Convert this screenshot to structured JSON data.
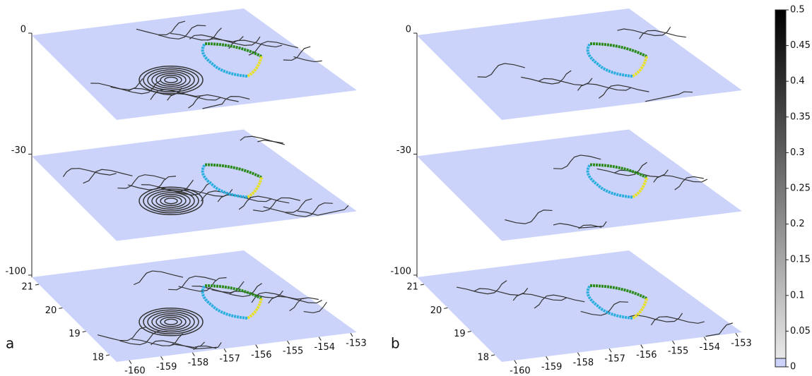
{
  "chart_data": [
    {
      "type": "slices",
      "panel_label": "a",
      "zticks": [
        0,
        -30,
        -100
      ],
      "yticks": [
        21,
        20,
        19,
        18
      ],
      "ylim": [
        17.7,
        21.3
      ],
      "xticks": [
        -160,
        -159,
        -158,
        -157,
        -156,
        -155,
        -154,
        -153
      ],
      "xlim": [
        -160.4,
        -152.8
      ],
      "plane_color": "#ccd3fa"
    },
    {
      "type": "slices",
      "panel_label": "b",
      "zticks": [
        0,
        -30,
        -100
      ],
      "yticks": [
        21,
        20,
        19,
        18
      ],
      "ylim": [
        17.7,
        21.3
      ],
      "xticks": [
        -160,
        -159,
        -158,
        -157,
        -156,
        -155,
        -154,
        -153
      ],
      "xlim": [
        -160.4,
        -152.8
      ],
      "plane_color": "#ccd3fa"
    },
    {
      "type": "colorbar",
      "lim": [
        0,
        0.5
      ],
      "ticks": [
        0,
        0.05,
        0.1,
        0.15,
        0.2,
        0.25,
        0.3,
        0.35,
        0.4,
        0.45,
        0.5
      ],
      "low_color": "#ccd3fa"
    }
  ]
}
